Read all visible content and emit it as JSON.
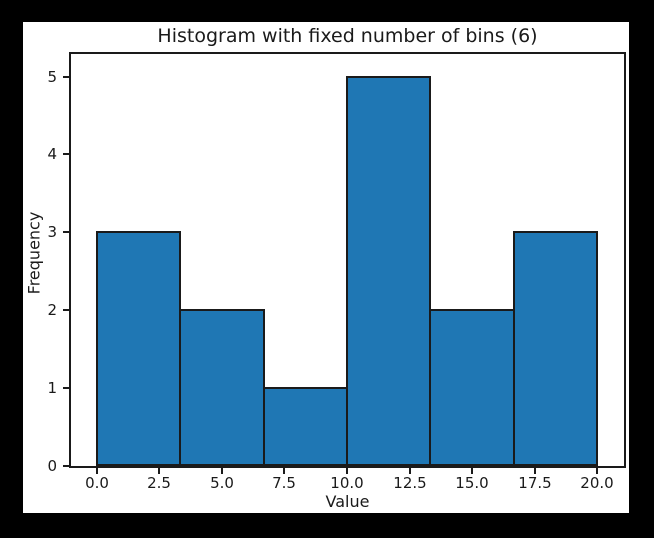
{
  "page": {
    "background_color": "#000000",
    "figure_background_color": "#ffffff"
  },
  "chart_data": {
    "type": "bar",
    "chart_kind": "histogram",
    "title": "Histogram with fixed number of bins (6)",
    "xlabel": "Value",
    "ylabel": "Frequency",
    "n_bins": 6,
    "bin_edges": [
      0,
      3.3333,
      6.6667,
      10,
      13.3333,
      16.6667,
      20
    ],
    "frequencies": [
      3,
      2,
      1,
      5,
      2,
      3
    ],
    "x_ticks": [
      {
        "value": 0,
        "label": "0.0"
      },
      {
        "value": 2.5,
        "label": "2.5"
      },
      {
        "value": 5,
        "label": "5.0"
      },
      {
        "value": 7.5,
        "label": "7.5"
      },
      {
        "value": 10,
        "label": "10.0"
      },
      {
        "value": 12.5,
        "label": "12.5"
      },
      {
        "value": 15,
        "label": "15.0"
      },
      {
        "value": 17.5,
        "label": "17.5"
      },
      {
        "value": 20,
        "label": "20.0"
      }
    ],
    "y_ticks": [
      {
        "value": 0,
        "label": "0"
      },
      {
        "value": 1,
        "label": "1"
      },
      {
        "value": 2,
        "label": "2"
      },
      {
        "value": 3,
        "label": "3"
      },
      {
        "value": 4,
        "label": "4"
      },
      {
        "value": 5,
        "label": "5"
      }
    ],
    "xlim": [
      -1.03,
      21.07
    ],
    "ylim": [
      0,
      5.29
    ],
    "grid": false,
    "legend_position": "none",
    "colors": {
      "bar_fill": "#1f77b4",
      "bar_edge": "#1a1a1a",
      "spine": "#1a1a1a",
      "text": "#1a1a1a"
    }
  }
}
